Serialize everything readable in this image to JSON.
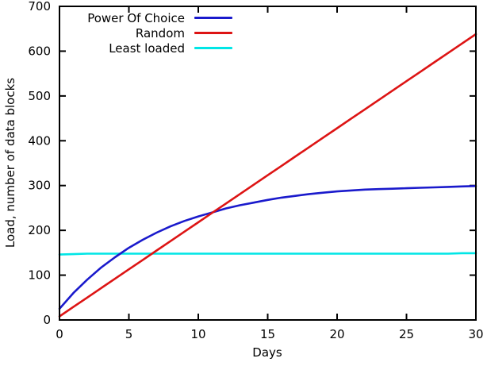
{
  "figure": {
    "background": "#ffffff",
    "axis_color": "#000000",
    "text_color": "#000000"
  },
  "chart_data": {
    "type": "line",
    "title": "",
    "xlabel": "Days",
    "ylabel": "Load, number of data blocks",
    "xlim": [
      0,
      30
    ],
    "ylim": [
      0,
      700
    ],
    "xticks": [
      0,
      5,
      10,
      15,
      20,
      25,
      30
    ],
    "yticks": [
      0,
      100,
      200,
      300,
      400,
      500,
      600,
      700
    ],
    "grid": false,
    "legend_position": "top-left-inside",
    "x": [
      0,
      1,
      2,
      3,
      4,
      5,
      6,
      7,
      8,
      9,
      10,
      11,
      12,
      13,
      14,
      15,
      16,
      17,
      18,
      19,
      20,
      21,
      22,
      23,
      24,
      25,
      26,
      27,
      28,
      29,
      30
    ],
    "series": [
      {
        "name": "Power Of Choice",
        "color": "#1a1acc",
        "values": [
          25,
          60,
          90,
          117,
          140,
          161,
          179,
          195,
          209,
          221,
          231,
          240,
          249,
          256,
          262,
          268,
          273,
          277,
          281,
          284,
          287,
          289,
          291,
          292,
          293,
          294,
          295,
          296,
          297,
          298,
          299
        ]
      },
      {
        "name": "Random",
        "color": "#dd1414",
        "values": [
          8,
          29,
          50,
          71,
          92,
          113,
          134,
          155,
          176,
          197,
          218,
          239,
          260,
          281,
          302,
          323,
          344,
          365,
          386,
          407,
          428,
          449,
          470,
          491,
          512,
          533,
          554,
          575,
          596,
          617,
          638
        ]
      },
      {
        "name": "Least loaded",
        "color": "#00e6e6",
        "values": [
          146,
          147,
          148,
          148,
          148,
          148,
          148,
          148,
          148,
          148,
          148,
          148,
          148,
          148,
          148,
          148,
          148,
          148,
          148,
          148,
          148,
          148,
          148,
          148,
          148,
          148,
          148,
          148,
          148,
          149,
          149
        ]
      }
    ]
  }
}
